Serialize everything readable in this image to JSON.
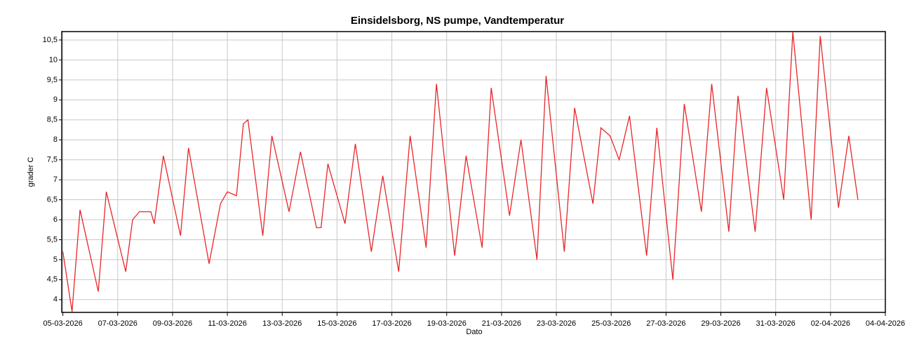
{
  "chart_data": {
    "type": "line",
    "title": "Einsidelsborg, NS pumpe, Vandtemperatur",
    "xlabel": "Dato",
    "ylabel": "grader C",
    "x": [
      "2026-03-05T00:00",
      "2026-03-05T08:00",
      "2026-03-05T15:00",
      "2026-03-06T07:00",
      "2026-03-06T14:00",
      "2026-03-07T07:00",
      "2026-03-07T13:00",
      "2026-03-07T19:00",
      "2026-03-08T05:00",
      "2026-03-08T08:00",
      "2026-03-08T16:00",
      "2026-03-09T07:00",
      "2026-03-09T14:00",
      "2026-03-10T08:00",
      "2026-03-10T18:00",
      "2026-03-11T00:00",
      "2026-03-11T08:00",
      "2026-03-11T14:00",
      "2026-03-11T18:00",
      "2026-03-12T07:00",
      "2026-03-12T15:00",
      "2026-03-13T06:00",
      "2026-03-13T16:00",
      "2026-03-14T06:00",
      "2026-03-14T10:00",
      "2026-03-14T16:00",
      "2026-03-15T07:00",
      "2026-03-15T16:00",
      "2026-03-16T06:00",
      "2026-03-16T16:00",
      "2026-03-17T06:00",
      "2026-03-17T16:00",
      "2026-03-18T06:00",
      "2026-03-18T15:00",
      "2026-03-19T07:00",
      "2026-03-19T17:00",
      "2026-03-20T07:00",
      "2026-03-20T15:00",
      "2026-03-21T07:00",
      "2026-03-21T17:00",
      "2026-03-22T07:00",
      "2026-03-22T15:00",
      "2026-03-23T07:00",
      "2026-03-23T16:00",
      "2026-03-24T08:00",
      "2026-03-24T15:00",
      "2026-03-24T23:00",
      "2026-03-25T07:00",
      "2026-03-25T16:00",
      "2026-03-26T07:00",
      "2026-03-26T16:00",
      "2026-03-27T06:00",
      "2026-03-27T16:00",
      "2026-03-28T07:00",
      "2026-03-28T16:00",
      "2026-03-29T07:00",
      "2026-03-29T15:00",
      "2026-03-30T06:00",
      "2026-03-30T16:00",
      "2026-03-31T07:00",
      "2026-03-31T15:00",
      "2026-04-01T07:00",
      "2026-04-01T15:00",
      "2026-04-02T07:00",
      "2026-04-02T16:00",
      "2026-04-03T00:00"
    ],
    "series": [
      {
        "color": "#e8262a",
        "values": [
          5.2,
          3.7,
          6.25,
          4.2,
          6.7,
          4.7,
          6.0,
          6.2,
          6.2,
          5.9,
          7.6,
          5.6,
          7.8,
          4.9,
          6.4,
          6.7,
          6.6,
          8.4,
          8.5,
          5.6,
          8.1,
          6.2,
          7.7,
          5.8,
          5.8,
          7.4,
          5.9,
          7.9,
          5.2,
          7.1,
          4.7,
          8.1,
          5.3,
          9.4,
          5.1,
          7.6,
          5.3,
          9.3,
          6.1,
          8.0,
          5.0,
          9.6,
          5.2,
          8.8,
          6.4,
          8.3,
          8.1,
          7.5,
          8.6,
          5.1,
          8.3,
          4.5,
          8.9,
          6.2,
          9.4,
          5.7,
          9.1,
          5.7,
          9.3,
          6.5,
          10.7,
          6.0,
          10.6,
          6.3,
          8.1,
          6.5
        ]
      }
    ],
    "xlim": [
      "2026-03-04T23:00",
      "2026-04-04T00:00"
    ],
    "xticks": [
      {
        "value": "2026-03-05",
        "label": "05-03-2026"
      },
      {
        "value": "2026-03-07",
        "label": "07-03-2026"
      },
      {
        "value": "2026-03-09",
        "label": "09-03-2026"
      },
      {
        "value": "2026-03-11",
        "label": "11-03-2026"
      },
      {
        "value": "2026-03-13",
        "label": "13-03-2026"
      },
      {
        "value": "2026-03-15",
        "label": "15-03-2026"
      },
      {
        "value": "2026-03-17",
        "label": "17-03-2026"
      },
      {
        "value": "2026-03-19",
        "label": "19-03-2026"
      },
      {
        "value": "2026-03-21",
        "label": "21-03-2026"
      },
      {
        "value": "2026-03-23",
        "label": "23-03-2026"
      },
      {
        "value": "2026-03-25",
        "label": "25-03-2026"
      },
      {
        "value": "2026-03-27",
        "label": "27-03-2026"
      },
      {
        "value": "2026-03-29",
        "label": "29-03-2026"
      },
      {
        "value": "2026-03-31",
        "label": "31-03-2026"
      },
      {
        "value": "2026-04-02",
        "label": "02-04-2026"
      },
      {
        "value": "2026-04-04",
        "label": "04-04-2026"
      }
    ],
    "ylim": [
      3.68,
      10.71
    ],
    "yticks": [
      4,
      {
        "value": 4.5,
        "label": "4,5"
      },
      5,
      {
        "value": 5.5,
        "label": "5,5"
      },
      6,
      {
        "value": 6.5,
        "label": "6,5"
      },
      7,
      {
        "value": 7.5,
        "label": "7,5"
      },
      8,
      {
        "value": 8.5,
        "label": "8,5"
      },
      9,
      {
        "value": 9.5,
        "label": "9,5"
      },
      10,
      {
        "value": 10.5,
        "label": "10,5"
      }
    ],
    "grid": true
  }
}
